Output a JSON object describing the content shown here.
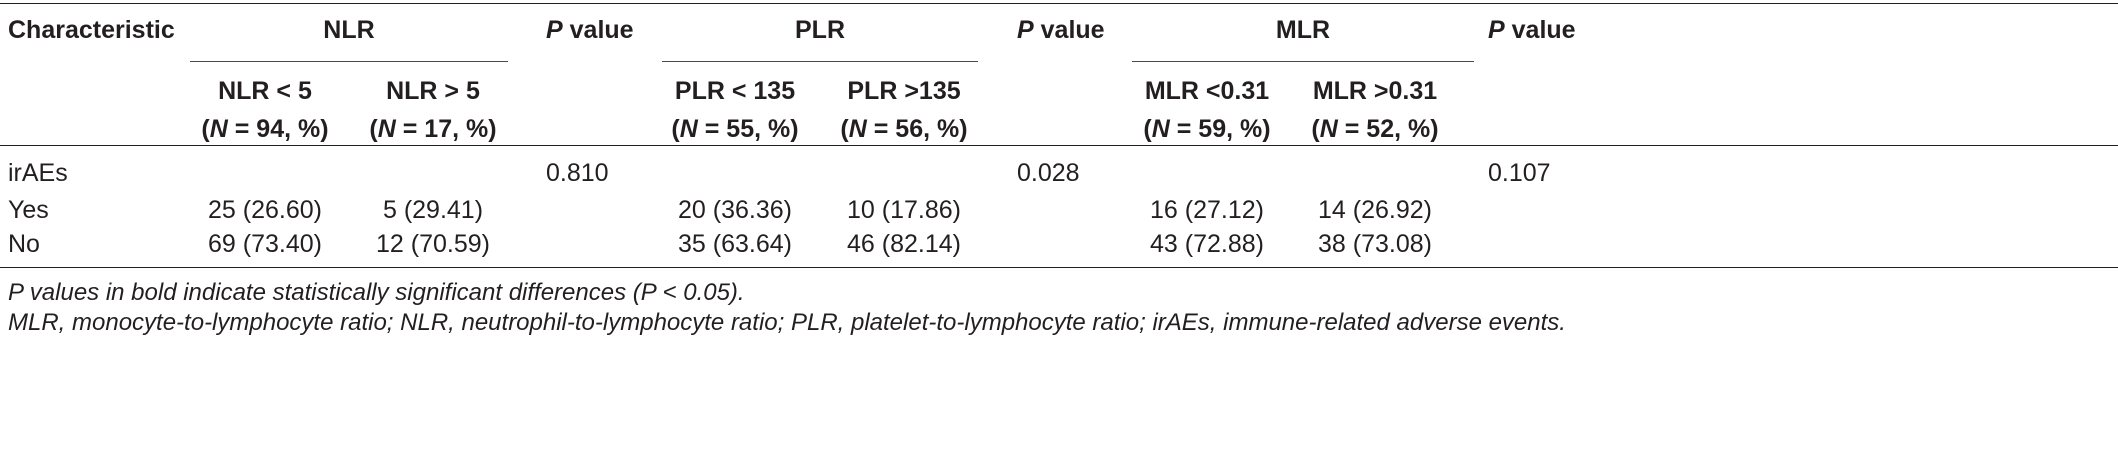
{
  "table": {
    "header": {
      "characteristic": "Characteristic",
      "groups": [
        "NLR",
        "PLR",
        "MLR"
      ],
      "pvalue_italic": "P",
      "pvalue_rest": " value"
    },
    "subheaders": [
      {
        "l1": "NLR < 5",
        "l2_pre": "(",
        "l2_n": "N",
        "l2_post": " = 94, %)"
      },
      {
        "l1": "NLR > 5",
        "l2_pre": "(",
        "l2_n": "N",
        "l2_post": " = 17, %)"
      },
      {
        "l1": "PLR < 135",
        "l2_pre": "(",
        "l2_n": "N",
        "l2_post": " = 55, %)"
      },
      {
        "l1": "PLR >135",
        "l2_pre": "(",
        "l2_n": "N",
        "l2_post": " = 56, %)"
      },
      {
        "l1": "MLR <0.31",
        "l2_pre": "(",
        "l2_n": "N",
        "l2_post": " = 59, %)"
      },
      {
        "l1": "MLR >0.31",
        "l2_pre": "(",
        "l2_n": "N",
        "l2_post": " = 52, %)"
      }
    ],
    "rows": [
      {
        "label": "irAEs",
        "values": [
          "",
          "",
          "",
          "",
          "",
          ""
        ],
        "p": [
          "0.810",
          "0.028",
          "0.107"
        ]
      },
      {
        "label": "Yes",
        "values": [
          "25 (26.60)",
          "5 (29.41)",
          "20 (36.36)",
          "10 (17.86)",
          "16 (27.12)",
          "14 (26.92)"
        ],
        "p": [
          "",
          "",
          ""
        ]
      },
      {
        "label": "No",
        "values": [
          "69 (73.40)",
          "12 (70.59)",
          "35 (63.64)",
          "46 (82.14)",
          "43 (72.88)",
          "38 (73.08)"
        ],
        "p": [
          "",
          "",
          ""
        ]
      }
    ]
  },
  "footnotes": {
    "line1": "P values in bold indicate statistically significant differences (P < 0.05).",
    "line2": "MLR, monocyte-to-lymphocyte ratio; NLR, neutrophil-to-lymphocyte ratio; PLR, platelet-to-lymphocyte ratio; irAEs, immune-related adverse events."
  }
}
